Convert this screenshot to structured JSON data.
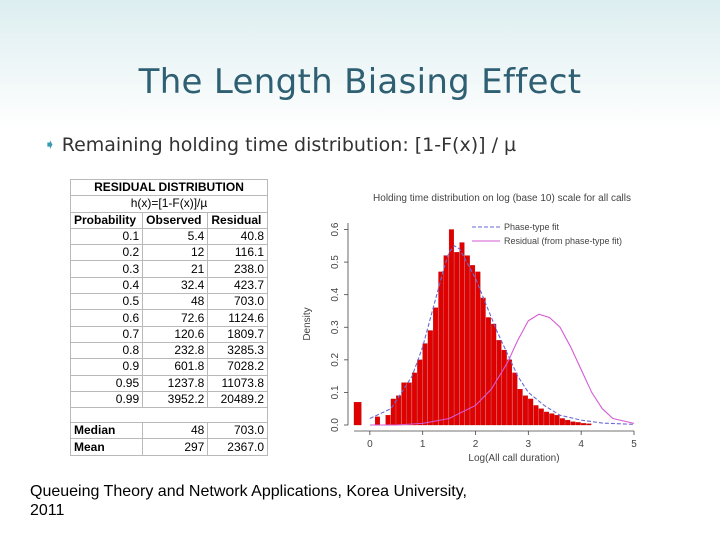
{
  "slide": {
    "title": "The Length Biasing Effect",
    "bullet_icon": "bullet-arrow-icon",
    "bullet": "Remaining holding time distribution: [1-F(x)] / µ",
    "footer_line1": "Queueing Theory and Network Applications, Korea University,",
    "footer_line2": "2011"
  },
  "table": {
    "title": "RESIDUAL DISTRIBUTION",
    "formula": "h(x)=[1-F(x)]/µ",
    "headers": [
      "Probability",
      "Observed",
      "Residual"
    ],
    "rows": [
      [
        "0.1",
        "5.4",
        "40.8"
      ],
      [
        "0.2",
        "12",
        "116.1"
      ],
      [
        "0.3",
        "21",
        "238.0"
      ],
      [
        "0.4",
        "32.4",
        "423.7"
      ],
      [
        "0.5",
        "48",
        "703.0"
      ],
      [
        "0.6",
        "72.6",
        "1124.6"
      ],
      [
        "0.7",
        "120.6",
        "1809.7"
      ],
      [
        "0.8",
        "232.8",
        "3285.3"
      ],
      [
        "0.9",
        "601.8",
        "7028.2"
      ],
      [
        "0.95",
        "1237.8",
        "11073.8"
      ],
      [
        "0.99",
        "3952.2",
        "20489.2"
      ]
    ],
    "summary": [
      [
        "Median",
        "48",
        "703.0"
      ],
      [
        "Mean",
        "297",
        "2367.0"
      ]
    ]
  },
  "chart_data": {
    "type": "bar",
    "title": "Holding time distribution on log (base 10) scale for all calls",
    "xlabel": "Log(All call duration)",
    "ylabel": "Density",
    "xlim": [
      -0.3,
      5
    ],
    "ylim": [
      0,
      0.62
    ],
    "xticks": [
      "0",
      "1",
      "2",
      "3",
      "4",
      "5"
    ],
    "yticks": [
      "0.0",
      "0.1",
      "0.2",
      "0.3",
      "0.4",
      "0.5",
      "0.6"
    ],
    "legend_position": "top-right",
    "bar_color": "#e00000",
    "bins": [
      {
        "x": -0.3,
        "x1": -0.15,
        "y": 0.07
      },
      {
        "x": 0.1,
        "x1": 0.2,
        "y": 0.025
      },
      {
        "x": 0.3,
        "x1": 0.4,
        "y": 0.03
      },
      {
        "x": 0.4,
        "x1": 0.5,
        "y": 0.08
      },
      {
        "x": 0.5,
        "x1": 0.6,
        "y": 0.09
      },
      {
        "x": 0.6,
        "x1": 0.7,
        "y": 0.13
      },
      {
        "x": 0.7,
        "x1": 0.8,
        "y": 0.13
      },
      {
        "x": 0.8,
        "x1": 0.9,
        "y": 0.16
      },
      {
        "x": 0.9,
        "x1": 1.0,
        "y": 0.2
      },
      {
        "x": 1.0,
        "x1": 1.1,
        "y": 0.25
      },
      {
        "x": 1.1,
        "x1": 1.2,
        "y": 0.29
      },
      {
        "x": 1.2,
        "x1": 1.3,
        "y": 0.36
      },
      {
        "x": 1.3,
        "x1": 1.4,
        "y": 0.47
      },
      {
        "x": 1.4,
        "x1": 1.5,
        "y": 0.52
      },
      {
        "x": 1.5,
        "x1": 1.6,
        "y": 0.6
      },
      {
        "x": 1.6,
        "x1": 1.7,
        "y": 0.53
      },
      {
        "x": 1.7,
        "x1": 1.8,
        "y": 0.56
      },
      {
        "x": 1.8,
        "x1": 1.9,
        "y": 0.52
      },
      {
        "x": 1.9,
        "x1": 2.0,
        "y": 0.49
      },
      {
        "x": 2.0,
        "x1": 2.1,
        "y": 0.47
      },
      {
        "x": 2.1,
        "x1": 2.2,
        "y": 0.39
      },
      {
        "x": 2.2,
        "x1": 2.3,
        "y": 0.33
      },
      {
        "x": 2.3,
        "x1": 2.4,
        "y": 0.31
      },
      {
        "x": 2.4,
        "x1": 2.5,
        "y": 0.26
      },
      {
        "x": 2.5,
        "x1": 2.6,
        "y": 0.23
      },
      {
        "x": 2.6,
        "x1": 2.7,
        "y": 0.2
      },
      {
        "x": 2.7,
        "x1": 2.8,
        "y": 0.16
      },
      {
        "x": 2.8,
        "x1": 2.9,
        "y": 0.11
      },
      {
        "x": 2.9,
        "x1": 3.0,
        "y": 0.09
      },
      {
        "x": 3.0,
        "x1": 3.1,
        "y": 0.08
      },
      {
        "x": 3.1,
        "x1": 3.2,
        "y": 0.06
      },
      {
        "x": 3.2,
        "x1": 3.3,
        "y": 0.05
      },
      {
        "x": 3.3,
        "x1": 3.4,
        "y": 0.04
      },
      {
        "x": 3.4,
        "x1": 3.5,
        "y": 0.035
      },
      {
        "x": 3.5,
        "x1": 3.6,
        "y": 0.03
      },
      {
        "x": 3.6,
        "x1": 3.7,
        "y": 0.02
      },
      {
        "x": 3.7,
        "x1": 3.8,
        "y": 0.015
      },
      {
        "x": 3.8,
        "x1": 3.9,
        "y": 0.01
      },
      {
        "x": 3.9,
        "x1": 4.0,
        "y": 0.008
      },
      {
        "x": 4.0,
        "x1": 4.1,
        "y": 0.005
      },
      {
        "x": 4.1,
        "x1": 4.2,
        "y": 0.004
      }
    ],
    "series": [
      {
        "name": "Phase-type fit",
        "color": "#6a6ad8",
        "style": "dashed",
        "x": [
          0.0,
          0.4,
          0.8,
          1.0,
          1.2,
          1.4,
          1.5,
          1.6,
          1.7,
          1.8,
          2.0,
          2.2,
          2.4,
          2.6,
          2.8,
          3.0,
          3.3,
          3.6,
          4.0,
          4.4,
          5.0
        ],
        "y": [
          0.02,
          0.05,
          0.15,
          0.24,
          0.36,
          0.48,
          0.53,
          0.55,
          0.54,
          0.51,
          0.45,
          0.37,
          0.29,
          0.22,
          0.15,
          0.1,
          0.06,
          0.03,
          0.015,
          0.006,
          0.002
        ]
      },
      {
        "name": "Residual (from phase-type fit)",
        "color": "#d65bd6",
        "style": "solid",
        "x": [
          0.0,
          0.5,
          1.0,
          1.5,
          2.0,
          2.3,
          2.6,
          2.8,
          3.0,
          3.2,
          3.4,
          3.6,
          3.8,
          4.0,
          4.2,
          4.4,
          4.6,
          5.0
        ],
        "y": [
          0.0,
          0.0,
          0.005,
          0.02,
          0.06,
          0.11,
          0.19,
          0.26,
          0.32,
          0.34,
          0.33,
          0.3,
          0.24,
          0.17,
          0.1,
          0.05,
          0.02,
          0.005
        ]
      }
    ]
  }
}
